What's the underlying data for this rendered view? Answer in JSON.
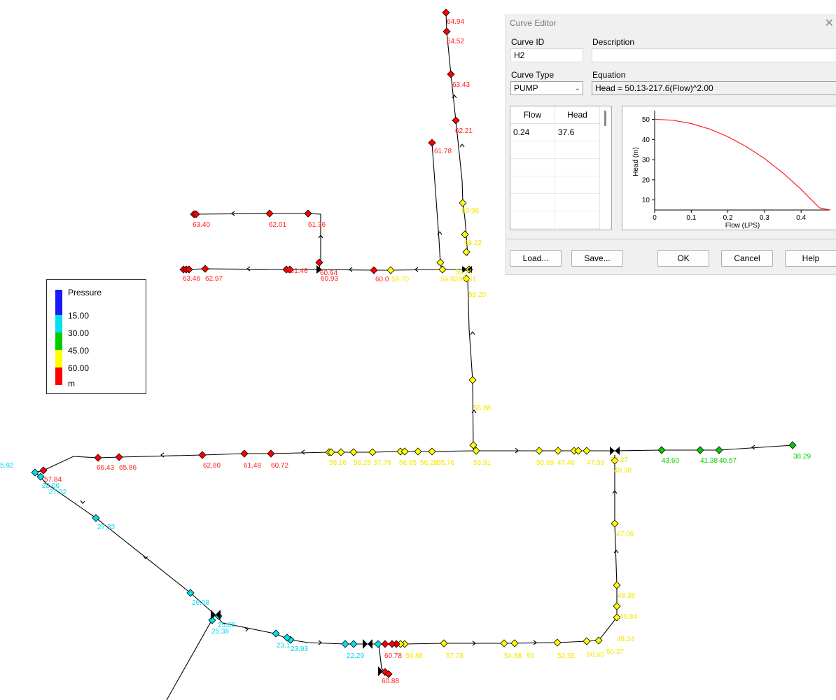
{
  "legend": {
    "title": "Pressure",
    "thresholds": [
      "15.00",
      "30.00",
      "45.00",
      "60.00"
    ],
    "unit": "m",
    "colors": {
      "low": "#1a1aff",
      "cyan": "#00e0f0",
      "green": "#00cc00",
      "yellow": "#ffff00",
      "red": "#ff0000"
    }
  },
  "node_labels": [
    {
      "text": "64.94",
      "c": "red"
    },
    {
      "text": "64.52",
      "c": "red"
    },
    {
      "text": "63.43",
      "c": "red"
    },
    {
      "text": "62.21",
      "c": "red"
    },
    {
      "text": "61.78",
      "c": "red"
    },
    {
      "text": "59.98",
      "c": "yellow"
    },
    {
      "text": "58.22",
      "c": "yellow"
    },
    {
      "text": "63.40",
      "c": "red"
    },
    {
      "text": "62.01",
      "c": "red"
    },
    {
      "text": "61.36",
      "c": "red"
    },
    {
      "text": "63.46",
      "c": "red"
    },
    {
      "text": "62.97",
      "c": "red"
    },
    {
      "text": "661.46",
      "c": "red"
    },
    {
      "text": "60.94",
      "c": "red"
    },
    {
      "text": "60.93",
      "c": "red"
    },
    {
      "text": "60.0",
      "c": "red"
    },
    {
      "text": "59.70",
      "c": "yellow"
    },
    {
      "text": "59.82",
      "c": "yellow"
    },
    {
      "text": "59.61",
      "c": "yellow"
    },
    {
      "text": "59.71",
      "c": "yellow"
    },
    {
      "text": "59.20",
      "c": "yellow"
    },
    {
      "text": "56.88",
      "c": "yellow"
    },
    {
      "text": "5.92",
      "c": "cyan"
    },
    {
      "text": "57.84",
      "c": "red"
    },
    {
      "text": "28.06",
      "c": "cyan"
    },
    {
      "text": "27.32",
      "c": "cyan"
    },
    {
      "text": "66.43",
      "c": "red"
    },
    {
      "text": "65.86",
      "c": "red"
    },
    {
      "text": "62.80",
      "c": "red"
    },
    {
      "text": "61.48",
      "c": "red"
    },
    {
      "text": "60.72",
      "c": "red"
    },
    {
      "text": "59.16",
      "c": "yellow"
    },
    {
      "text": "58.26",
      "c": "yellow"
    },
    {
      "text": "57.76",
      "c": "yellow"
    },
    {
      "text": "56.85",
      "c": "yellow"
    },
    {
      "text": "56.28",
      "c": "yellow"
    },
    {
      "text": "55.76",
      "c": "yellow"
    },
    {
      "text": "53.91",
      "c": "yellow"
    },
    {
      "text": "50.69",
      "c": "yellow"
    },
    {
      "text": "47.46",
      "c": "yellow"
    },
    {
      "text": "47.99",
      "c": "yellow"
    },
    {
      "text": "50.27",
      "c": "yellow"
    },
    {
      "text": "48.38",
      "c": "yellow"
    },
    {
      "text": "43.60",
      "c": "green"
    },
    {
      "text": "41.38",
      "c": "green"
    },
    {
      "text": "40.57",
      "c": "green"
    },
    {
      "text": "38.29",
      "c": "green"
    },
    {
      "text": "27.33",
      "c": "cyan"
    },
    {
      "text": "47.06",
      "c": "yellow"
    },
    {
      "text": "26.08",
      "c": "cyan"
    },
    {
      "text": "25.80",
      "c": "cyan"
    },
    {
      "text": "25.38",
      "c": "cyan"
    },
    {
      "text": "23.93",
      "c": "cyan"
    },
    {
      "text": "23.1",
      "c": "cyan"
    },
    {
      "text": "22.29",
      "c": "cyan"
    },
    {
      "text": "60.78",
      "c": "red"
    },
    {
      "text": "59.88",
      "c": "yellow"
    },
    {
      "text": "57.78",
      "c": "yellow"
    },
    {
      "text": "54.88",
      "c": "yellow"
    },
    {
      "text": "50",
      "c": "yellow"
    },
    {
      "text": "52.35",
      "c": "yellow"
    },
    {
      "text": "50.60",
      "c": "yellow"
    },
    {
      "text": "50.37",
      "c": "yellow"
    },
    {
      "text": "49.34",
      "c": "yellow"
    },
    {
      "text": "49.84",
      "c": "yellow"
    },
    {
      "text": "48.38",
      "c": "yellow"
    },
    {
      "text": "60.88",
      "c": "red"
    }
  ],
  "dialog": {
    "title": "Curve Editor",
    "close_glyph": "✕",
    "curve_id_label": "Curve ID",
    "curve_id_value": "H2",
    "description_label": "Description",
    "description_value": "",
    "curve_type_label": "Curve Type",
    "curve_type_value": "PUMP",
    "equation_label": "Equation",
    "equation_value": "Head = 50.13-217.6(Flow)^2.00",
    "table": {
      "headers": [
        "Flow",
        "Head"
      ],
      "rows": [
        [
          "0.24",
          "37.6"
        ]
      ]
    },
    "buttons": {
      "load": "Load...",
      "save": "Save...",
      "ok": "OK",
      "cancel": "Cancel",
      "help": "Help"
    }
  },
  "chart_data": {
    "type": "line",
    "title": "",
    "xlabel": "Flow (LPS)",
    "ylabel": "Head (m)",
    "xlim": [
      0,
      0.48
    ],
    "ylim": [
      5,
      53
    ],
    "xticks": [
      "0",
      "0.1",
      "0.2",
      "0.3",
      "0.4"
    ],
    "yticks": [
      "10",
      "20",
      "30",
      "40",
      "50"
    ],
    "equation": {
      "a": 50.13,
      "b": 217.6,
      "c": 2.0
    },
    "series": [
      {
        "color": "#ff2020",
        "x": [
          0,
          0.05,
          0.1,
          0.15,
          0.2,
          0.25,
          0.3,
          0.35,
          0.4,
          0.45,
          0.48
        ],
        "y": [
          50.13,
          49.59,
          47.95,
          45.23,
          41.43,
          36.53,
          30.55,
          23.47,
          15.31,
          6.07,
          0.0
        ]
      }
    ]
  }
}
